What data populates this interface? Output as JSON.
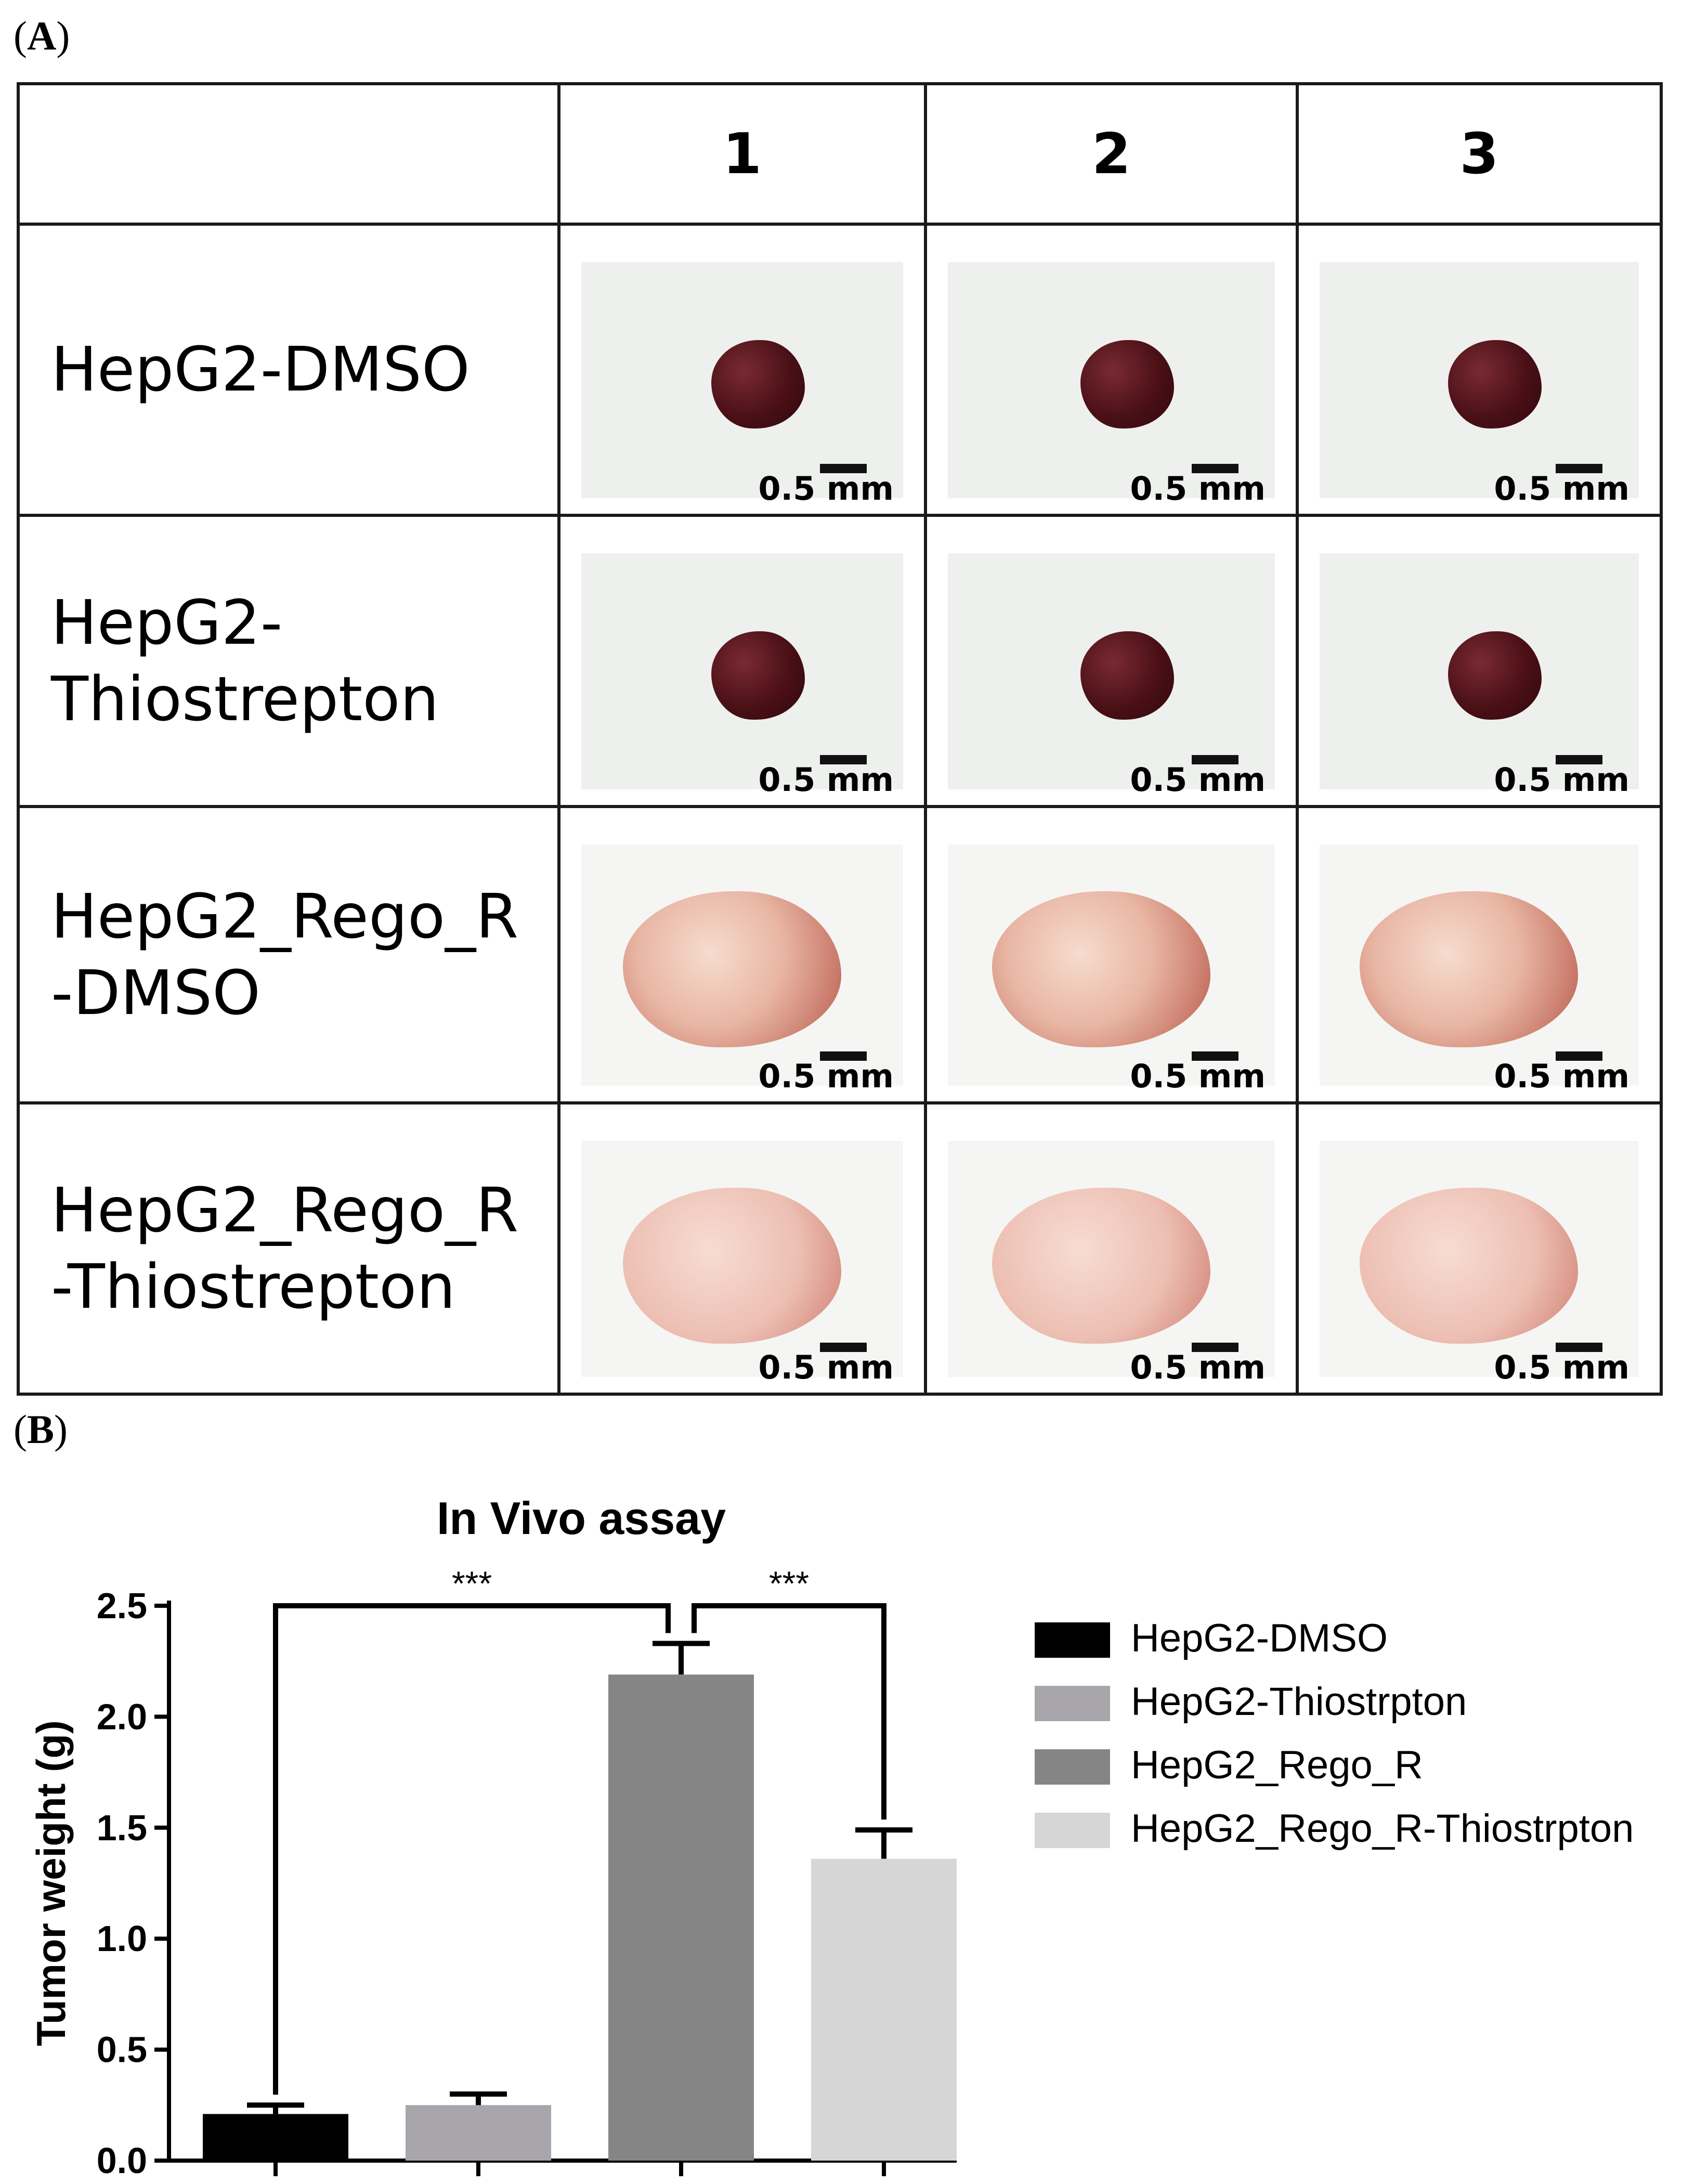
{
  "panel_a": {
    "label_paren_open": "(",
    "label": "A",
    "label_paren_close": ")",
    "columns": [
      "1",
      "2",
      "3"
    ],
    "rows": [
      {
        "label_lines": [
          "HepG2-DMSO"
        ],
        "tumor": "dark"
      },
      {
        "label_lines": [
          "HepG2-",
          "Thiostrepton"
        ],
        "tumor": "dark"
      },
      {
        "label_lines": [
          "HepG2_Rego_R",
          "-DMSO"
        ],
        "tumor": "pink"
      },
      {
        "label_lines": [
          "HepG2_Rego_R",
          "-Thiostrepton"
        ],
        "tumor": "pale"
      }
    ],
    "scale_label": "0.5 mm"
  },
  "panel_b": {
    "label_paren_open": "(",
    "label": "B",
    "label_paren_close": ")"
  },
  "colors": {
    "HepG2-DMSO": "#000000",
    "HepG2-Thiostrpton": "#a8a6ab",
    "HepG2_Rego_R": "#858585",
    "HepG2_Rego_R-Thiostrpton": "#d6d6d6"
  },
  "chart_data": {
    "type": "bar",
    "title": "In Vivo assay",
    "ylabel": "Tumor weight (g)",
    "xlabel": "",
    "ylim": [
      0,
      2.5
    ],
    "yticks": [
      "0.0",
      "0.5",
      "1.0",
      "1.5",
      "2.0",
      "2.5"
    ],
    "categories": [
      "HepG2-DMSO",
      "HepG2-Thiostrpton",
      "HepG2_Rego_R",
      "HepG2_Rego_R-Thiostrpton"
    ],
    "values": [
      0.21,
      0.25,
      2.19,
      1.36
    ],
    "errors": [
      0.04,
      0.05,
      0.14,
      0.13
    ],
    "legend": [
      "HepG2-DMSO",
      "HepG2-Thiostrpton",
      "HepG2_Rego_R",
      "HepG2_Rego_R-Thiostrpton"
    ],
    "legend_position": "right",
    "significance": [
      {
        "from": 0,
        "to": 2,
        "label": "***"
      },
      {
        "from": 2,
        "to": 3,
        "label": "***"
      }
    ]
  }
}
